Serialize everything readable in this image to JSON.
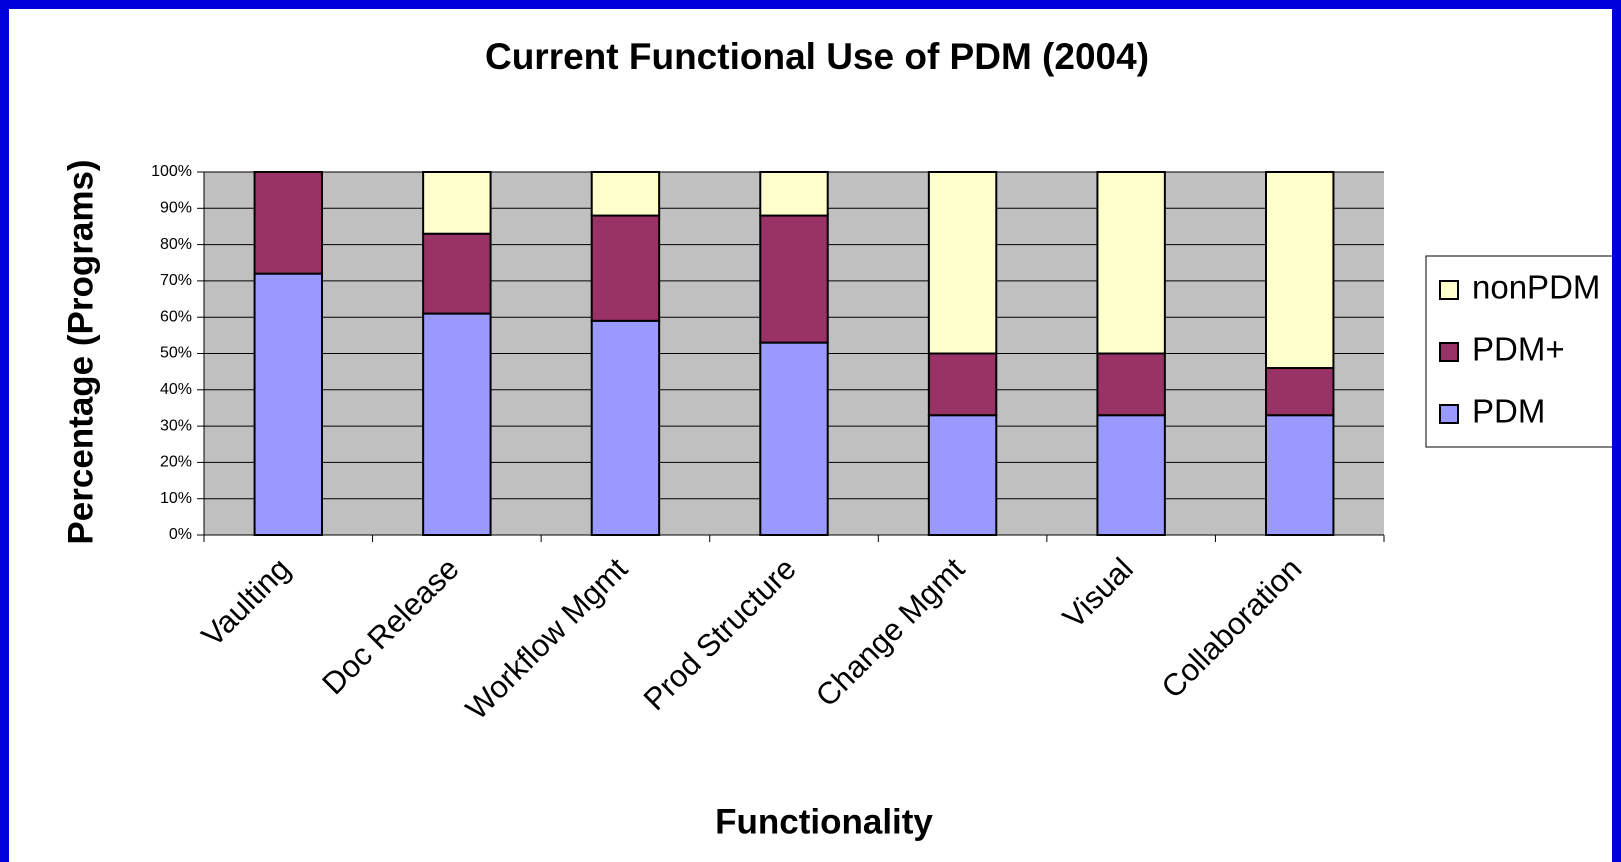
{
  "chart_data": {
    "type": "stacked_bar",
    "title": "Current Functional Use of PDM (2004)",
    "x_label": "Functionality",
    "y_label": "Percentage (Programs)",
    "categories": [
      "Vaulting",
      "Doc Release",
      "Workflow Mgmt",
      "Prod Structure",
      "Change Mgmt",
      "Visual",
      "Collaboration"
    ],
    "series": [
      {
        "name": "PDM",
        "color": "#9999ff",
        "values": [
          72,
          61,
          59,
          53,
          33,
          33,
          33
        ]
      },
      {
        "name": "PDM+",
        "color": "#993366",
        "values": [
          28,
          22,
          29,
          35,
          17,
          17,
          13
        ]
      },
      {
        "name": "nonPDM",
        "color": "#ffffcc",
        "values": [
          0,
          17,
          12,
          12,
          50,
          50,
          54
        ]
      }
    ],
    "ylim": [
      0,
      100
    ],
    "yticks": [
      {
        "value": 0,
        "label": "0%"
      },
      {
        "value": 10,
        "label": "10%"
      },
      {
        "value": 20,
        "label": "20%"
      },
      {
        "value": 30,
        "label": "30%"
      },
      {
        "value": 40,
        "label": "40%"
      },
      {
        "value": 50,
        "label": "50%"
      },
      {
        "value": 60,
        "label": "60%"
      },
      {
        "value": 70,
        "label": "70%"
      },
      {
        "value": 80,
        "label": "80%"
      },
      {
        "value": 90,
        "label": "90%"
      },
      {
        "value": 100,
        "label": "100%"
      }
    ],
    "grid": true,
    "legend": "right"
  }
}
